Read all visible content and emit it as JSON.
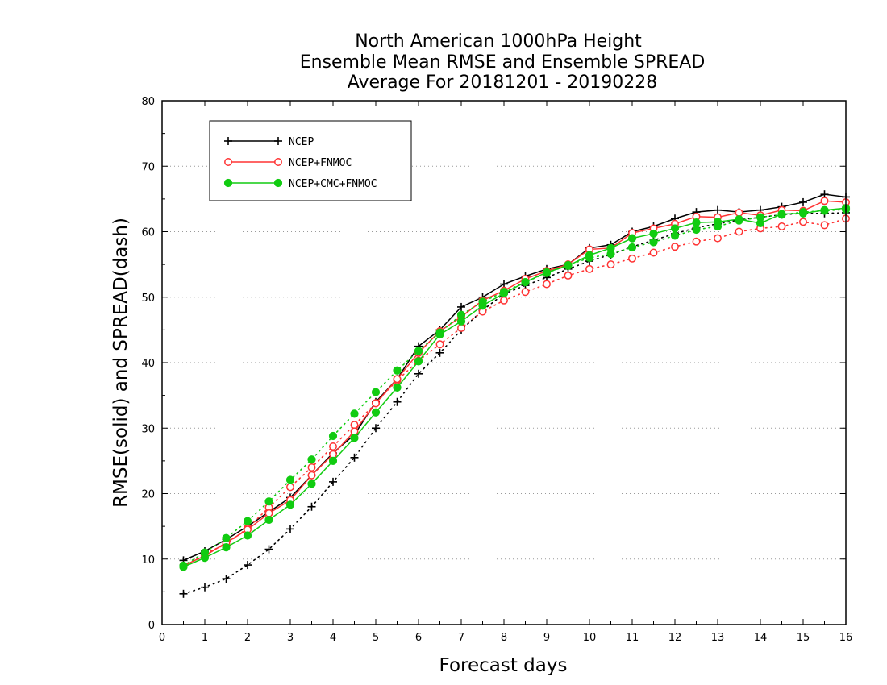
{
  "chart_data": {
    "type": "line",
    "title_lines": [
      "North American 1000hPa Height",
      "Ensemble Mean RMSE and Ensemble SPREAD",
      "Average For 20181201 - 20190228"
    ],
    "xlabel": "Forecast days",
    "ylabel": "RMSE(solid) and SPREAD(dash)",
    "xlim": [
      0,
      16
    ],
    "ylim": [
      0,
      80
    ],
    "x_ticks": [
      0,
      1,
      2,
      3,
      4,
      5,
      6,
      7,
      8,
      9,
      10,
      11,
      12,
      13,
      14,
      15,
      16
    ],
    "y_ticks": [
      0,
      10,
      20,
      30,
      40,
      50,
      60,
      70,
      80
    ],
    "grid": "horizontal dotted",
    "legend_position": "top-left",
    "x": [
      0.5,
      1,
      1.5,
      2,
      2.5,
      3,
      3.5,
      4,
      4.5,
      5,
      5.5,
      6,
      6.5,
      7,
      7.5,
      8,
      8.5,
      9,
      9.5,
      10,
      10.5,
      11,
      11.5,
      12,
      12.5,
      13,
      13.5,
      14,
      14.5,
      15,
      15.5,
      16
    ],
    "series": [
      {
        "name": "NCEP",
        "color": "#000000",
        "marker": "plus",
        "rmse": [
          9.8,
          11.2,
          13.0,
          15.0,
          17.2,
          19.4,
          22.8,
          26.2,
          29.0,
          34.0,
          37.5,
          42.5,
          45.0,
          48.5,
          50.0,
          52.0,
          53.2,
          54.3,
          55.0,
          57.5,
          58.0,
          60.0,
          60.8,
          62.0,
          63.0,
          63.3,
          63.0,
          63.3,
          63.8,
          64.5,
          65.7,
          65.3
        ],
        "spread": [
          4.7,
          5.7,
          7.0,
          9.1,
          11.5,
          14.6,
          18.0,
          21.8,
          25.5,
          30.0,
          34.0,
          38.3,
          41.5,
          45.0,
          48.0,
          50.5,
          51.8,
          53.0,
          54.3,
          55.5,
          56.5,
          57.7,
          58.7,
          59.7,
          60.6,
          61.2,
          61.8,
          62.2,
          62.6,
          62.8,
          62.8,
          62.9
        ]
      },
      {
        "name": "NCEP+FNMOC",
        "color": "#ff3333",
        "marker": "open-circle",
        "rmse": [
          9.0,
          10.5,
          12.5,
          14.5,
          17.0,
          19.0,
          22.8,
          26.0,
          29.5,
          33.8,
          37.5,
          41.5,
          44.8,
          47.0,
          49.5,
          51.0,
          52.8,
          54.0,
          55.0,
          57.3,
          57.5,
          59.8,
          60.5,
          61.2,
          62.3,
          62.2,
          62.9,
          62.5,
          63.3,
          63.2,
          64.7,
          64.5
        ],
        "spread": [
          8.8,
          10.8,
          12.3,
          14.7,
          17.9,
          21.0,
          24.0,
          27.2,
          30.5,
          33.8,
          37.3,
          40.3,
          42.8,
          45.3,
          47.8,
          49.5,
          50.8,
          52.0,
          53.3,
          54.3,
          55.0,
          55.9,
          56.8,
          57.7,
          58.5,
          59.0,
          60.0,
          60.5,
          60.8,
          61.5,
          61.0,
          62.0
        ]
      },
      {
        "name": "NCEP+CMC+FNMOC",
        "color": "#11cc11",
        "marker": "filled-circle",
        "rmse": [
          8.8,
          10.2,
          11.8,
          13.6,
          16.0,
          18.3,
          21.5,
          25.0,
          28.5,
          32.4,
          36.2,
          40.2,
          44.3,
          46.3,
          48.7,
          50.6,
          52.3,
          53.8,
          54.8,
          56.4,
          57.5,
          59.0,
          59.7,
          60.5,
          61.4,
          61.5,
          61.9,
          61.3,
          62.7,
          62.8,
          63.3,
          63.6
        ],
        "spread": [
          9.0,
          11.0,
          13.2,
          15.8,
          18.8,
          22.1,
          25.2,
          28.8,
          32.2,
          35.5,
          38.8,
          41.8,
          44.6,
          47.3,
          49.3,
          50.8,
          52.3,
          53.7,
          54.9,
          56.0,
          56.6,
          57.6,
          58.4,
          59.4,
          60.3,
          60.8,
          61.7,
          62.2,
          62.6,
          63.0,
          63.2,
          63.4
        ]
      }
    ]
  }
}
